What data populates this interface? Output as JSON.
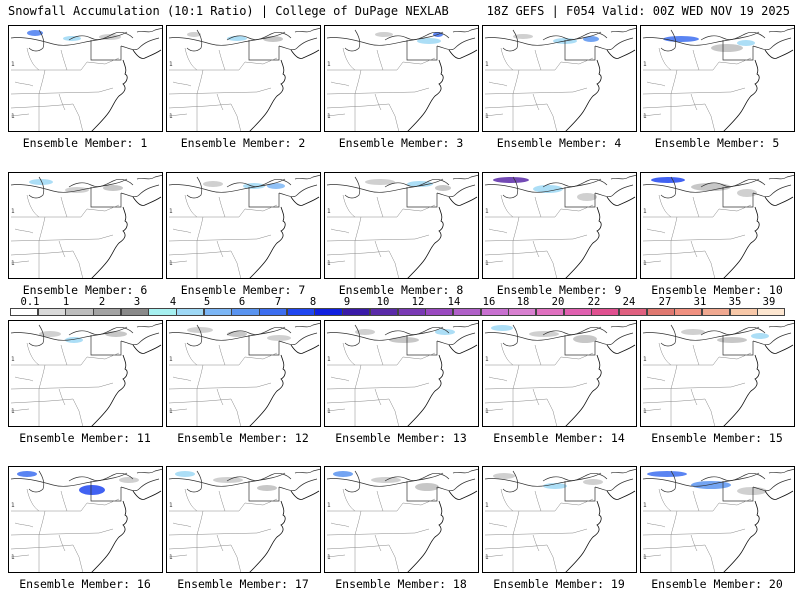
{
  "header": {
    "left": "Snowfall Accumulation (10:1 Ratio) | College of DuPage NEXLAB",
    "right": "18Z GEFS | F054 Valid: 00Z WED NOV 19 2025"
  },
  "panels": [
    {
      "label": "Ensemble Member: 1"
    },
    {
      "label": "Ensemble Member: 2"
    },
    {
      "label": "Ensemble Member: 3"
    },
    {
      "label": "Ensemble Member: 4"
    },
    {
      "label": "Ensemble Member: 5"
    },
    {
      "label": "Ensemble Member: 6"
    },
    {
      "label": "Ensemble Member: 7"
    },
    {
      "label": "Ensemble Member: 8"
    },
    {
      "label": "Ensemble Member: 9"
    },
    {
      "label": "Ensemble Member: 10"
    },
    {
      "label": "Ensemble Member: 11"
    },
    {
      "label": "Ensemble Member: 12"
    },
    {
      "label": "Ensemble Member: 13"
    },
    {
      "label": "Ensemble Member: 14"
    },
    {
      "label": "Ensemble Member: 15"
    },
    {
      "label": "Ensemble Member: 16"
    },
    {
      "label": "Ensemble Member: 17"
    },
    {
      "label": "Ensemble Member: 18"
    },
    {
      "label": "Ensemble Member: 19"
    },
    {
      "label": "Ensemble Member: 20"
    }
  ],
  "colorbar": {
    "labels": [
      "0.1",
      "1",
      "2",
      "3",
      "4",
      "5",
      "6",
      "7",
      "8",
      "9",
      "10",
      "12",
      "14",
      "16",
      "18",
      "20",
      "22",
      "24",
      "27",
      "31",
      "35",
      "39"
    ],
    "colors": [
      "#ffffff",
      "#d9d9d9",
      "#bdbdbd",
      "#a3a3a3",
      "#8a8a8a",
      "#a6f0f0",
      "#9ed8f5",
      "#7cb6f5",
      "#5a94f0",
      "#3d6ef0",
      "#2046f0",
      "#1020e0",
      "#3a1aa8",
      "#5a2aa8",
      "#7a3ab4",
      "#9a4ac0",
      "#b060c8",
      "#c870d0",
      "#d880d0",
      "#e070c0",
      "#e060b0",
      "#e05090",
      "#e06080",
      "#e07870",
      "#f09080",
      "#f0a890",
      "#f8c8a8",
      "#fde6d0"
    ]
  }
}
